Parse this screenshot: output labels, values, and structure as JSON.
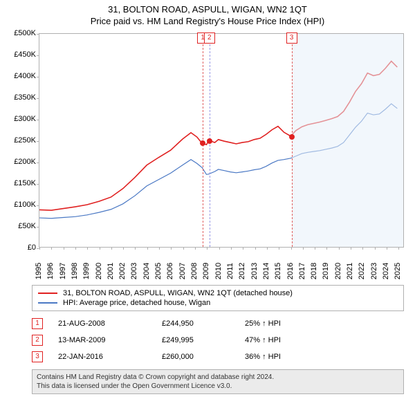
{
  "title": "31, BOLTON ROAD, ASPULL, WIGAN, WN2 1QT",
  "subtitle": "Price paid vs. HM Land Registry's House Price Index (HPI)",
  "chart": {
    "type": "line",
    "x_min": 1995,
    "x_max": 2025.5,
    "x_ticks": [
      1995,
      1996,
      1997,
      1998,
      1999,
      2000,
      2001,
      2002,
      2003,
      2004,
      2005,
      2006,
      2007,
      2008,
      2009,
      2010,
      2011,
      2012,
      2013,
      2014,
      2015,
      2016,
      2017,
      2018,
      2019,
      2020,
      2021,
      2022,
      2023,
      2024,
      2025
    ],
    "y_min": 0,
    "y_max": 500000,
    "y_ticks": [
      0,
      50000,
      100000,
      150000,
      200000,
      250000,
      300000,
      350000,
      400000,
      450000,
      500000
    ],
    "y_tick_labels": [
      "£0",
      "£50K",
      "£100K",
      "£150K",
      "£200K",
      "£250K",
      "£300K",
      "£350K",
      "£400K",
      "£450K",
      "£500K"
    ],
    "background_color": "#ffffff",
    "shaded_from": 2016.06,
    "series": [
      {
        "key": "property",
        "label": "31, BOLTON ROAD, ASPULL, WIGAN, WN2 1QT (detached house)",
        "color": "#e02020",
        "width": 1.6,
        "points": [
          [
            1995,
            87000
          ],
          [
            1996,
            86000
          ],
          [
            1997,
            90000
          ],
          [
            1998,
            94000
          ],
          [
            1999,
            99000
          ],
          [
            2000,
            107000
          ],
          [
            2001,
            117000
          ],
          [
            2002,
            137000
          ],
          [
            2003,
            163000
          ],
          [
            2004,
            192000
          ],
          [
            2005,
            210000
          ],
          [
            2006,
            227000
          ],
          [
            2007,
            253000
          ],
          [
            2007.7,
            268000
          ],
          [
            2008.2,
            258000
          ],
          [
            2008.64,
            243000
          ],
          [
            2009,
            240000
          ],
          [
            2009.2,
            250000
          ],
          [
            2009.7,
            245000
          ],
          [
            2010,
            252000
          ],
          [
            2010.5,
            248000
          ],
          [
            2011,
            245000
          ],
          [
            2011.5,
            242000
          ],
          [
            2012,
            245000
          ],
          [
            2012.5,
            247000
          ],
          [
            2013,
            252000
          ],
          [
            2013.5,
            255000
          ],
          [
            2014,
            264000
          ],
          [
            2014.5,
            275000
          ],
          [
            2015,
            283000
          ],
          [
            2015.5,
            269000
          ],
          [
            2016.06,
            260000
          ],
          [
            2016.5,
            273000
          ],
          [
            2017,
            282000
          ],
          [
            2017.5,
            287000
          ],
          [
            2018,
            290000
          ],
          [
            2018.5,
            293000
          ],
          [
            2019,
            297000
          ],
          [
            2019.5,
            301000
          ],
          [
            2020,
            306000
          ],
          [
            2020.5,
            318000
          ],
          [
            2021,
            340000
          ],
          [
            2021.5,
            365000
          ],
          [
            2022,
            383000
          ],
          [
            2022.5,
            408000
          ],
          [
            2023,
            402000
          ],
          [
            2023.5,
            405000
          ],
          [
            2024,
            419000
          ],
          [
            2024.5,
            436000
          ],
          [
            2025,
            422000
          ]
        ]
      },
      {
        "key": "hpi",
        "label": "HPI: Average price, detached house, Wigan",
        "color": "#4a78c4",
        "width": 1.2,
        "points": [
          [
            1995,
            68000
          ],
          [
            1996,
            67000
          ],
          [
            1997,
            69000
          ],
          [
            1998,
            71000
          ],
          [
            1999,
            75000
          ],
          [
            2000,
            81000
          ],
          [
            2001,
            88000
          ],
          [
            2002,
            101000
          ],
          [
            2003,
            120000
          ],
          [
            2004,
            143000
          ],
          [
            2005,
            158000
          ],
          [
            2006,
            173000
          ],
          [
            2007,
            192000
          ],
          [
            2007.7,
            205000
          ],
          [
            2008.2,
            196000
          ],
          [
            2008.64,
            186000
          ],
          [
            2009,
            170000
          ],
          [
            2009.2,
            171000
          ],
          [
            2009.7,
            177000
          ],
          [
            2010,
            182000
          ],
          [
            2010.5,
            179000
          ],
          [
            2011,
            176000
          ],
          [
            2011.5,
            174000
          ],
          [
            2012,
            176000
          ],
          [
            2012.5,
            178000
          ],
          [
            2013,
            181000
          ],
          [
            2013.5,
            183000
          ],
          [
            2014,
            189000
          ],
          [
            2014.5,
            197000
          ],
          [
            2015,
            203000
          ],
          [
            2015.5,
            205000
          ],
          [
            2016.06,
            208000
          ],
          [
            2016.5,
            213000
          ],
          [
            2017,
            219000
          ],
          [
            2017.5,
            222000
          ],
          [
            2018,
            224000
          ],
          [
            2018.5,
            226000
          ],
          [
            2019,
            229000
          ],
          [
            2019.5,
            232000
          ],
          [
            2020,
            236000
          ],
          [
            2020.5,
            245000
          ],
          [
            2021,
            263000
          ],
          [
            2021.5,
            281000
          ],
          [
            2022,
            295000
          ],
          [
            2022.5,
            314000
          ],
          [
            2023,
            310000
          ],
          [
            2023.5,
            312000
          ],
          [
            2024,
            323000
          ],
          [
            2024.5,
            336000
          ],
          [
            2025,
            325000
          ]
        ]
      }
    ],
    "markers": [
      {
        "n": "1",
        "x": 2008.64,
        "y": 244950,
        "line_color": "#e06060"
      },
      {
        "n": "2",
        "x": 2009.2,
        "y": 249995,
        "line_color": "#9a9ae6"
      },
      {
        "n": "3",
        "x": 2016.06,
        "y": 260000,
        "line_color": "#e06060"
      }
    ],
    "dot_color": "#e02020"
  },
  "legend": {
    "rows": [
      {
        "color": "#e02020",
        "label": "31, BOLTON ROAD, ASPULL, WIGAN, WN2 1QT (detached house)"
      },
      {
        "color": "#4a78c4",
        "label": "HPI: Average price, detached house, Wigan"
      }
    ]
  },
  "sales": [
    {
      "n": "1",
      "date": "21-AUG-2008",
      "price": "£244,950",
      "delta": "25% ↑ HPI"
    },
    {
      "n": "2",
      "date": "13-MAR-2009",
      "price": "£249,995",
      "delta": "47% ↑ HPI"
    },
    {
      "n": "3",
      "date": "22-JAN-2016",
      "price": "£260,000",
      "delta": "36% ↑ HPI"
    }
  ],
  "footer": {
    "line1": "Contains HM Land Registry data © Crown copyright and database right 2024.",
    "line2": "This data is licensed under the Open Government Licence v3.0."
  }
}
